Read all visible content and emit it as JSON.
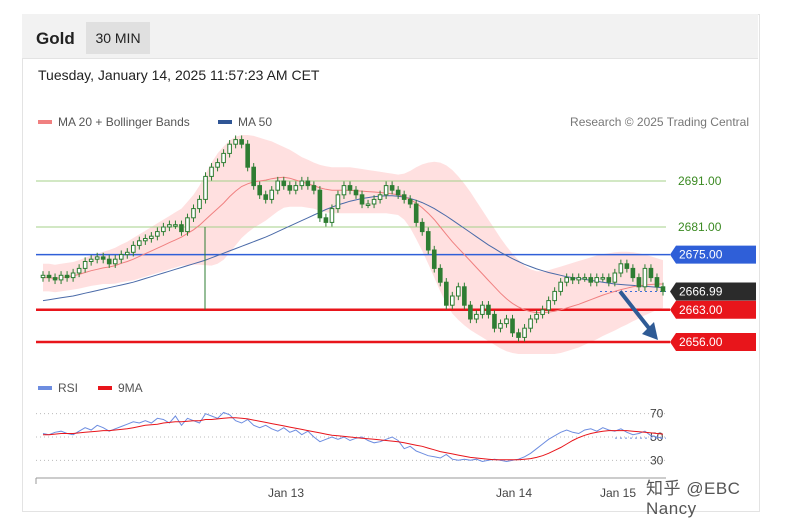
{
  "header": {
    "instrument": "Gold",
    "timeframe": "30 MIN",
    "datetime": "Tuesday, January 14, 2025 11:57:23 AM CET"
  },
  "legend": {
    "ma20": "MA 20 + Bollinger Bands",
    "ma50": "MA 50",
    "credit": "Research © 2025 Trading Central"
  },
  "rsi_legend": {
    "rsi": "RSI",
    "ma9": "9MA"
  },
  "watermark": "知乎 @EBC Nancy",
  "colors": {
    "candle": "#2e7d32",
    "ma20": "#f08080",
    "band": "#ffd6d6",
    "ma50": "#4a6aa8",
    "resistance_green": "#a6d08a",
    "blue_level": "#2f5fd8",
    "support_red": "#e8151b",
    "current": "#2b2b2b",
    "arrow": "#2f5b95",
    "rsi": "#6d8de0",
    "rsi_ma": "#e8151b"
  },
  "chart_data": {
    "type": "candlestick",
    "instrument": "Gold",
    "timeframe": "30 MIN",
    "ylim": [
      2651,
      2701
    ],
    "x_tick_labels": [
      "Jan 13",
      "Jan 14",
      "Jan 15"
    ],
    "levels": [
      {
        "value": 2691.0,
        "label": "2691.00",
        "kind": "resistance"
      },
      {
        "value": 2681.0,
        "label": "2681.00",
        "kind": "resistance"
      },
      {
        "value": 2675.0,
        "label": "2675.00",
        "kind": "pivot"
      },
      {
        "value": 2666.99,
        "label": "2666.99",
        "kind": "current"
      },
      {
        "value": 2663.0,
        "label": "2663.00",
        "kind": "support"
      },
      {
        "value": 2656.0,
        "label": "2656.00",
        "kind": "support"
      }
    ],
    "close": [
      2670.5,
      2670,
      2669.5,
      2670.5,
      2670,
      2671,
      2672,
      2673.5,
      2674,
      2674.5,
      2674,
      2673,
      2674,
      2675,
      2675.5,
      2677,
      2678,
      2678.5,
      2679,
      2680,
      2681,
      2681.5,
      2681.5,
      2680,
      2683,
      2685,
      2687,
      2692,
      2694,
      2695,
      2697,
      2699,
      2700,
      2699,
      2694,
      2690,
      2688,
      2687,
      2689,
      2691,
      2690,
      2689,
      2690,
      2691,
      2690,
      2689,
      2683,
      2682,
      2685,
      2688,
      2690,
      2689,
      2688,
      2686,
      2686,
      2687,
      2688,
      2690,
      2689,
      2688,
      2687,
      2686,
      2682,
      2680,
      2676,
      2672,
      2669,
      2664,
      2666,
      2668,
      2664,
      2661,
      2662,
      2664,
      2662,
      2659,
      2660,
      2661,
      2658,
      2657,
      2659,
      2661,
      2662,
      2663,
      2665,
      2667,
      2669,
      2670,
      2669.5,
      2670,
      2670,
      2669,
      2670,
      2670,
      2669,
      2671,
      2673,
      2672,
      2670,
      2668,
      2672,
      2670,
      2668,
      2667
    ],
    "ma20": [
      2670,
      2670,
      2669.8,
      2670,
      2670.2,
      2670.4,
      2670.7,
      2671.1,
      2671.5,
      2671.8,
      2672.1,
      2672.3,
      2672.6,
      2673.1,
      2673.5,
      2674,
      2674.6,
      2675.2,
      2675.8,
      2676.4,
      2677,
      2677.6,
      2678.2,
      2678.8,
      2679.6,
      2680.4,
      2681.4,
      2682.6,
      2683.8,
      2685,
      2686.2,
      2687.6,
      2688.8,
      2689.8,
      2690.4,
      2690.8,
      2691,
      2691.2,
      2691.5,
      2691.7,
      2691.8,
      2691.6,
      2691.2,
      2690.8,
      2690.4,
      2690,
      2689.5,
      2689.2,
      2689,
      2689,
      2689,
      2689,
      2688.9,
      2688.8,
      2688.7,
      2688.6,
      2688.5,
      2688.4,
      2688.2,
      2688,
      2687.6,
      2687,
      2686.2,
      2685.2,
      2684,
      2682.6,
      2681,
      2679.4,
      2677.8,
      2676.4,
      2675,
      2673.6,
      2672.2,
      2670.8,
      2669.4,
      2668,
      2666.6,
      2665.4,
      2664.4,
      2663.6,
      2663,
      2662.6,
      2662.4,
      2662.4,
      2662.5,
      2662.7,
      2663,
      2663.4,
      2663.8,
      2664.2,
      2664.7,
      2665.2,
      2665.7,
      2666.2,
      2666.6,
      2667,
      2667.4,
      2667.7,
      2668,
      2668.2,
      2668.4,
      2668.5,
      2668.6,
      2668.6
    ],
    "band_upper": [
      2673,
      2673,
      2672.8,
      2673,
      2673.2,
      2673.4,
      2673.8,
      2674.3,
      2674.8,
      2675.2,
      2675.6,
      2676,
      2676.5,
      2677.2,
      2677.8,
      2678.6,
      2679.4,
      2680.2,
      2681,
      2681.8,
      2682.6,
      2683.4,
      2684.2,
      2685,
      2686.5,
      2688,
      2690,
      2692.5,
      2695,
      2697,
      2698.5,
      2699.8,
      2700.6,
      2701,
      2701,
      2700.8,
      2700.4,
      2700,
      2699.6,
      2699,
      2698.4,
      2697.8,
      2697,
      2696.2,
      2695.6,
      2695,
      2694.5,
      2694.2,
      2694,
      2694,
      2694,
      2694,
      2693.8,
      2693.6,
      2693.4,
      2693.2,
      2693,
      2692.8,
      2692.6,
      2692.4,
      2692.6,
      2693.2,
      2694,
      2694.6,
      2695,
      2695.2,
      2695,
      2694.4,
      2693.4,
      2692,
      2690.4,
      2688.6,
      2686.6,
      2684.6,
      2682.6,
      2680.6,
      2678.6,
      2676.8,
      2675.2,
      2673.8,
      2672.6,
      2671.8,
      2671.4,
      2671.4,
      2671.6,
      2672,
      2672.4,
      2672.8,
      2673.2,
      2673.6,
      2674,
      2674.4,
      2674.8,
      2675.1,
      2675.3,
      2675.5,
      2675.6,
      2675.6,
      2675.5,
      2675.3,
      2675,
      2674.6,
      2674.2,
      2673.8
    ],
    "band_lower": [
      2667,
      2667,
      2666.8,
      2667,
      2667.2,
      2667.4,
      2667.6,
      2667.9,
      2668.2,
      2668.4,
      2668.6,
      2668.6,
      2668.7,
      2669,
      2669.2,
      2669.4,
      2669.8,
      2670.2,
      2670.6,
      2671,
      2671.4,
      2671.8,
      2672.2,
      2672.6,
      2672.7,
      2672.8,
      2672.8,
      2672.7,
      2672.6,
      2673,
      2673.9,
      2675.4,
      2677,
      2678.6,
      2679.8,
      2680.8,
      2681.6,
      2682.4,
      2683.4,
      2684.4,
      2685.2,
      2685.4,
      2685.4,
      2685.4,
      2685.2,
      2685,
      2684.5,
      2684.2,
      2684,
      2684,
      2684,
      2684,
      2684,
      2684,
      2684,
      2684,
      2684,
      2684,
      2683.8,
      2683.6,
      2682.6,
      2680.8,
      2678.4,
      2675.8,
      2673,
      2670,
      2667,
      2664.4,
      2662.2,
      2660.8,
      2659.6,
      2658.6,
      2657.8,
      2657,
      2656.2,
      2655.4,
      2654.6,
      2654,
      2653.6,
      2653.4,
      2653.4,
      2653.4,
      2653.4,
      2653.4,
      2653.4,
      2653.4,
      2653.6,
      2654,
      2654.4,
      2654.8,
      2655.4,
      2656,
      2656.6,
      2657.3,
      2657.9,
      2658.5,
      2659.2,
      2659.8,
      2660.5,
      2661.1,
      2661.8,
      2662.4,
      2663,
      2663.4
    ],
    "ma50": [
      2665,
      2665.2,
      2665.4,
      2665.6,
      2665.8,
      2666,
      2666.3,
      2666.6,
      2666.9,
      2667.2,
      2667.5,
      2667.8,
      2668.1,
      2668.4,
      2668.7,
      2669,
      2669.4,
      2669.8,
      2670.2,
      2670.6,
      2671,
      2671.4,
      2671.8,
      2672.2,
      2672.6,
      2673,
      2673.4,
      2673.8,
      2674.3,
      2674.8,
      2675.3,
      2675.8,
      2676.3,
      2676.8,
      2677.3,
      2677.8,
      2678.3,
      2678.8,
      2679.4,
      2680,
      2680.6,
      2681.2,
      2681.8,
      2682.4,
      2683,
      2683.6,
      2684.2,
      2684.8,
      2685.3,
      2685.8,
      2686.2,
      2686.6,
      2686.9,
      2687.2,
      2687.4,
      2687.6,
      2687.7,
      2687.8,
      2687.8,
      2687.7,
      2687.5,
      2687.2,
      2686.8,
      2686.3,
      2685.7,
      2685,
      2684.2,
      2683.4,
      2682.5,
      2681.6,
      2680.7,
      2679.8,
      2678.9,
      2678,
      2677.1,
      2676.3,
      2675.5,
      2674.8,
      2674.1,
      2673.5,
      2672.9,
      2672.4,
      2671.9,
      2671.5,
      2671.1,
      2670.8,
      2670.5,
      2670.2,
      2670,
      2669.8,
      2669.6,
      2669.4,
      2669.2,
      2669,
      2668.8,
      2668.6,
      2668.5,
      2668.4,
      2668.3,
      2668.2,
      2668.1,
      2668,
      2667.9,
      2667.8
    ],
    "rsi": {
      "ylim": [
        20,
        80
      ],
      "levels": [
        70,
        50,
        30
      ],
      "rsi": [
        53,
        52,
        54,
        55,
        53,
        52,
        55,
        58,
        56,
        60,
        58,
        55,
        57,
        59,
        61,
        63,
        62,
        64,
        62,
        66,
        65,
        62,
        68,
        60,
        66,
        64,
        62,
        70,
        68,
        66,
        71,
        69,
        64,
        62,
        65,
        60,
        58,
        60,
        57,
        55,
        58,
        54,
        56,
        52,
        55,
        50,
        46,
        48,
        50,
        48,
        50,
        47,
        49,
        50,
        47,
        45,
        46,
        48,
        50,
        47,
        40,
        42,
        38,
        36,
        34,
        33,
        32,
        35,
        31,
        30,
        31,
        30,
        31,
        29,
        30,
        31,
        30,
        29,
        30,
        31,
        33,
        36,
        40,
        44,
        48,
        51,
        54,
        56,
        54,
        53,
        56,
        57,
        55,
        58,
        56,
        55,
        57,
        54,
        52,
        53,
        55,
        51,
        50,
        49
      ],
      "ma9": [
        52,
        52,
        52.5,
        53,
        53,
        53,
        53.5,
        54,
        54.5,
        55,
        55.5,
        55.5,
        56,
        56.5,
        57,
        58,
        59,
        60,
        60.5,
        61,
        62,
        62.5,
        63,
        63,
        63.5,
        64,
        64,
        65,
        65,
        65.5,
        66,
        66.5,
        66.5,
        66,
        65.5,
        64.5,
        63.5,
        62.5,
        61.5,
        60.5,
        59.5,
        58.5,
        57.5,
        56.5,
        55.5,
        54.5,
        53.5,
        52.5,
        51.5,
        51,
        50.5,
        50,
        49.5,
        49,
        48.5,
        48,
        47.5,
        47,
        46.5,
        46,
        45,
        44,
        43,
        42,
        40.5,
        39,
        37.5,
        36.5,
        35.5,
        34.5,
        33.5,
        32.5,
        32,
        31.5,
        31,
        30.5,
        30.5,
        30.5,
        30.5,
        30.5,
        31,
        31.5,
        32.5,
        34,
        36,
        38.5,
        41,
        44,
        47,
        49.5,
        51.5,
        53,
        54,
        55,
        55.5,
        55.5,
        55.5,
        55.5,
        55,
        54.5,
        54,
        53.5,
        53,
        52.5
      ]
    }
  }
}
